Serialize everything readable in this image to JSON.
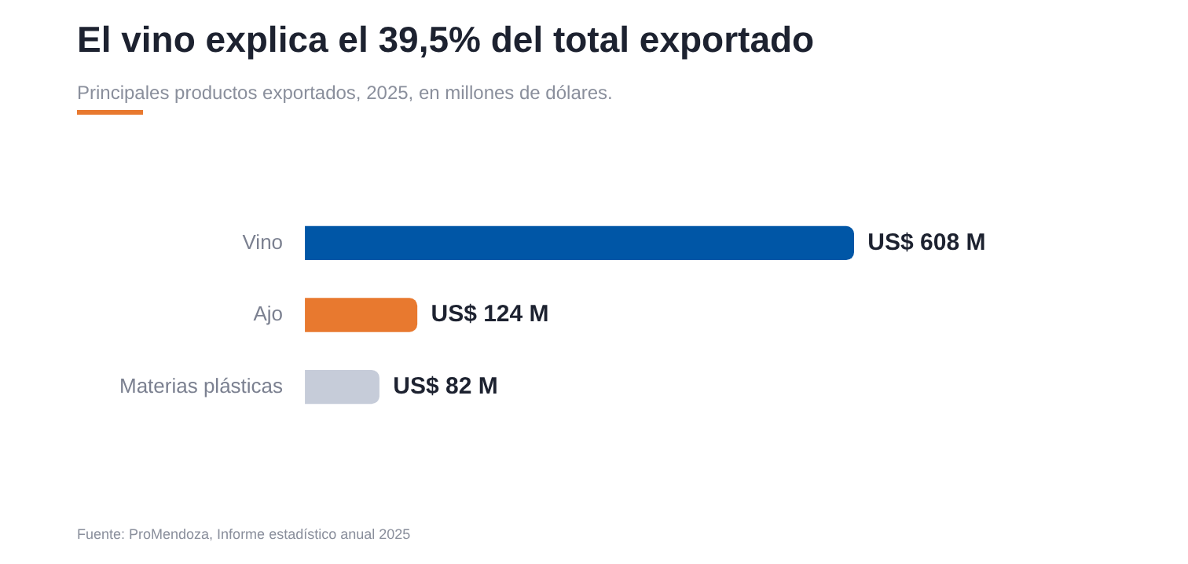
{
  "chart_data": {
    "type": "bar",
    "orientation": "horizontal",
    "title": "El vino explica el 39,5% del total exportado",
    "subtitle": "Principales productos exportados, 2025, en millones de dólares.",
    "categories": [
      "Vino",
      "Ajo",
      "Materias plásticas"
    ],
    "values": [
      608,
      124,
      82
    ],
    "colors": [
      "#0056a6",
      "#e8792f",
      "#c6ccd9"
    ],
    "value_labels": [
      "US$ 608 M",
      "US$ 124 M",
      "US$ 82 M"
    ],
    "annotations": [
      "Fuente: ProMendoza, Informe estadístico anual 2025"
    ],
    "legend": false
  }
}
